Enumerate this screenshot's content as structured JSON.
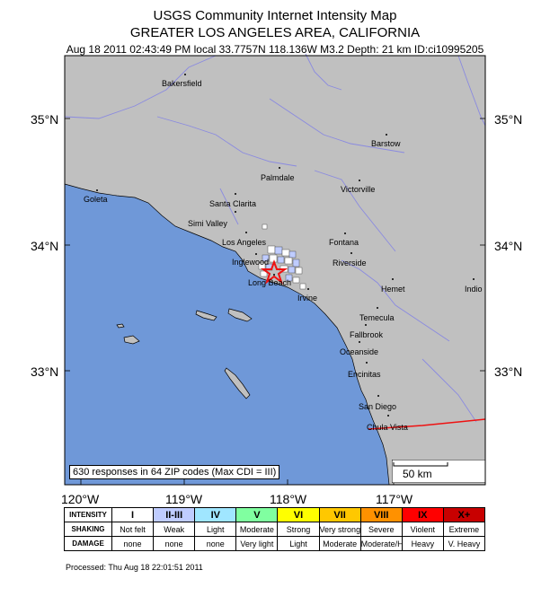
{
  "header": {
    "title": "USGS Community Internet Intensity Map",
    "region": "GREATER LOS ANGELES AREA, CALIFORNIA",
    "event_info": "Aug 18 2011 02:43:49 PM local 33.7757N 118.136W M3.2 Depth: 21 km ID:ci10995205"
  },
  "map": {
    "lat_labels_left": [
      "35°N",
      "34°N",
      "33°N"
    ],
    "lat_labels_right": [
      "35°N",
      "34°N",
      "33°N"
    ],
    "lon_labels": [
      "120°W",
      "119°W",
      "118°W",
      "117°W"
    ],
    "cities": [
      "Bakersfield",
      "Barstow",
      "Palmdale",
      "Victorville",
      "Goleta",
      "Santa Clarita",
      "Simi Valley",
      "Los Angeles",
      "Fontana",
      "Inglewood",
      "Riverside",
      "Long Beach",
      "Irvine",
      "Hemet",
      "Indio",
      "Temecula",
      "Fallbrook",
      "Oceanside",
      "Encinitas",
      "San Diego",
      "Chula Vista"
    ],
    "responses_text": "630 responses in 64 ZIP codes (Max CDI = III)",
    "scale_label": "50 km",
    "colors": {
      "land": "#c0c0c0",
      "ocean": "#6f98d8",
      "rivers": "#8a8ae0",
      "border": "#ee1111",
      "epicenter": "#ee1111"
    }
  },
  "legend": {
    "row_headers": [
      "INTENSITY",
      "SHAKING",
      "DAMAGE"
    ],
    "intensity": [
      "I",
      "II-III",
      "IV",
      "V",
      "VI",
      "VII",
      "VIII",
      "IX",
      "X+"
    ],
    "shaking": [
      "Not felt",
      "Weak",
      "Light",
      "Moderate",
      "Strong",
      "Very strong",
      "Severe",
      "Violent",
      "Extreme"
    ],
    "damage": [
      "none",
      "none",
      "none",
      "Very light",
      "Light",
      "Moderate",
      "Moderate/Heavy",
      "Heavy",
      "V. Heavy"
    ],
    "colors": [
      "#ffffff",
      "#bfccff",
      "#a0e6ff",
      "#80ffa0",
      "#ffff00",
      "#ffc800",
      "#ff9100",
      "#ff0000",
      "#c80000"
    ]
  },
  "footer": {
    "processed": "Processed: Thu Aug 18 22:01:51 2011"
  }
}
